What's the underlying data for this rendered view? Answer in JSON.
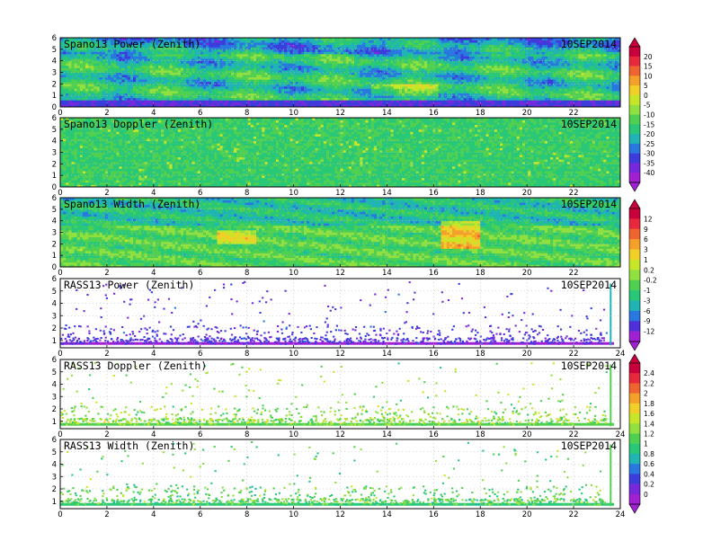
{
  "chart_data": [
    {
      "type": "heatmap",
      "title": "Spano13 Power (Zenith)",
      "date": "10SEP2014",
      "x_ticks": [
        "0",
        "2",
        "4",
        "6",
        "8",
        "10",
        "12",
        "14",
        "16",
        "18",
        "20",
        "22"
      ],
      "y_ticks": [
        "0",
        "1",
        "2",
        "3",
        "4",
        "5",
        "6"
      ],
      "xlim": [
        0,
        24
      ],
      "ylim": [
        0,
        6
      ],
      "field": "dense",
      "colorbar": "power"
    },
    {
      "type": "heatmap",
      "title": "Spano13 Doppler (Zenith)",
      "date": "10SEP2014",
      "x_ticks": [
        "0",
        "2",
        "4",
        "6",
        "8",
        "10",
        "12",
        "14",
        "16",
        "18",
        "20",
        "22"
      ],
      "y_ticks": [
        "0",
        "1",
        "2",
        "3",
        "4",
        "5",
        "6"
      ],
      "xlim": [
        0,
        24
      ],
      "ylim": [
        0,
        6
      ],
      "field": "dense",
      "colorbar": "doppler"
    },
    {
      "type": "heatmap",
      "title": "Spano13 Width (Zenith)",
      "date": "10SEP2014",
      "x_ticks": [
        "0",
        "2",
        "4",
        "6",
        "8",
        "10",
        "12",
        "14",
        "16",
        "18",
        "20",
        "22"
      ],
      "y_ticks": [
        "0",
        "1",
        "2",
        "3",
        "4",
        "5",
        "6"
      ],
      "xlim": [
        0,
        24
      ],
      "ylim": [
        0,
        6
      ],
      "field": "dense",
      "colorbar": "width"
    },
    {
      "type": "heatmap",
      "title": "RASS13 Power (Zenith)",
      "date": "10SEP2014",
      "x_ticks": [
        "0",
        "2",
        "4",
        "6",
        "8",
        "10",
        "12",
        "14",
        "16",
        "18",
        "20",
        "22",
        "24"
      ],
      "y_ticks": [
        "1",
        "2",
        "3",
        "4",
        "5",
        "6"
      ],
      "xlim": [
        0,
        24
      ],
      "ylim": [
        0.4,
        6
      ],
      "field": "sparse",
      "colorbar": "power"
    },
    {
      "type": "heatmap",
      "title": "RASS13 Doppler (Zenith)",
      "date": "10SEP2014",
      "x_ticks": [
        "0",
        "2",
        "4",
        "6",
        "8",
        "10",
        "12",
        "14",
        "16",
        "18",
        "20",
        "22",
        "24"
      ],
      "y_ticks": [
        "1",
        "2",
        "3",
        "4",
        "5",
        "6"
      ],
      "xlim": [
        0,
        24
      ],
      "ylim": [
        0.4,
        6
      ],
      "field": "sparse",
      "colorbar": "doppler"
    },
    {
      "type": "heatmap",
      "title": "RASS13 Width (Zenith)",
      "date": "10SEP2014",
      "x_ticks": [
        "0",
        "2",
        "4",
        "6",
        "8",
        "10",
        "12",
        "14",
        "16",
        "18",
        "20",
        "22",
        "24"
      ],
      "y_ticks": [
        "1",
        "2",
        "3",
        "4",
        "5",
        "6"
      ],
      "xlim": [
        0,
        24
      ],
      "ylim": [
        0.4,
        6
      ],
      "field": "sparse",
      "colorbar": "width"
    }
  ],
  "colorbars": [
    {
      "name": "power",
      "labels": [
        "20",
        "15",
        "10",
        "5",
        "0",
        "-5",
        "-10",
        "-15",
        "-20",
        "-25",
        "-30",
        "-35",
        "-40"
      ],
      "colors": [
        "#c8003c",
        "#e8283c",
        "#f06430",
        "#f5a028",
        "#f0d028",
        "#c8e628",
        "#90e040",
        "#50d050",
        "#28c878",
        "#20b4b4",
        "#2878e0",
        "#3c3cdc",
        "#7828dc",
        "#a020d2"
      ]
    },
    {
      "name": "width",
      "labels": [
        "12",
        "9",
        "6",
        "3",
        "1",
        "0.2",
        "-0.2",
        "-1",
        "-3",
        "-6",
        "-9",
        "-12"
      ],
      "colors": [
        "#c8003c",
        "#e8283c",
        "#f06430",
        "#f5a028",
        "#f0d028",
        "#c8e628",
        "#90e040",
        "#50d050",
        "#28c878",
        "#20b4b4",
        "#2878e0",
        "#5030dc",
        "#a020d2"
      ]
    },
    {
      "name": "doppler",
      "labels": [
        "2.4",
        "2.2",
        "2",
        "1.8",
        "1.6",
        "1.4",
        "1.2",
        "1",
        "0.8",
        "0.6",
        "0.4",
        "0.2",
        "0"
      ],
      "colors": [
        "#c8003c",
        "#e8283c",
        "#f06430",
        "#f5a028",
        "#f0d028",
        "#c8e628",
        "#90e040",
        "#50d050",
        "#28c878",
        "#20b4b4",
        "#2878e0",
        "#3c3cdc",
        "#7828dc",
        "#a020d2"
      ]
    }
  ]
}
